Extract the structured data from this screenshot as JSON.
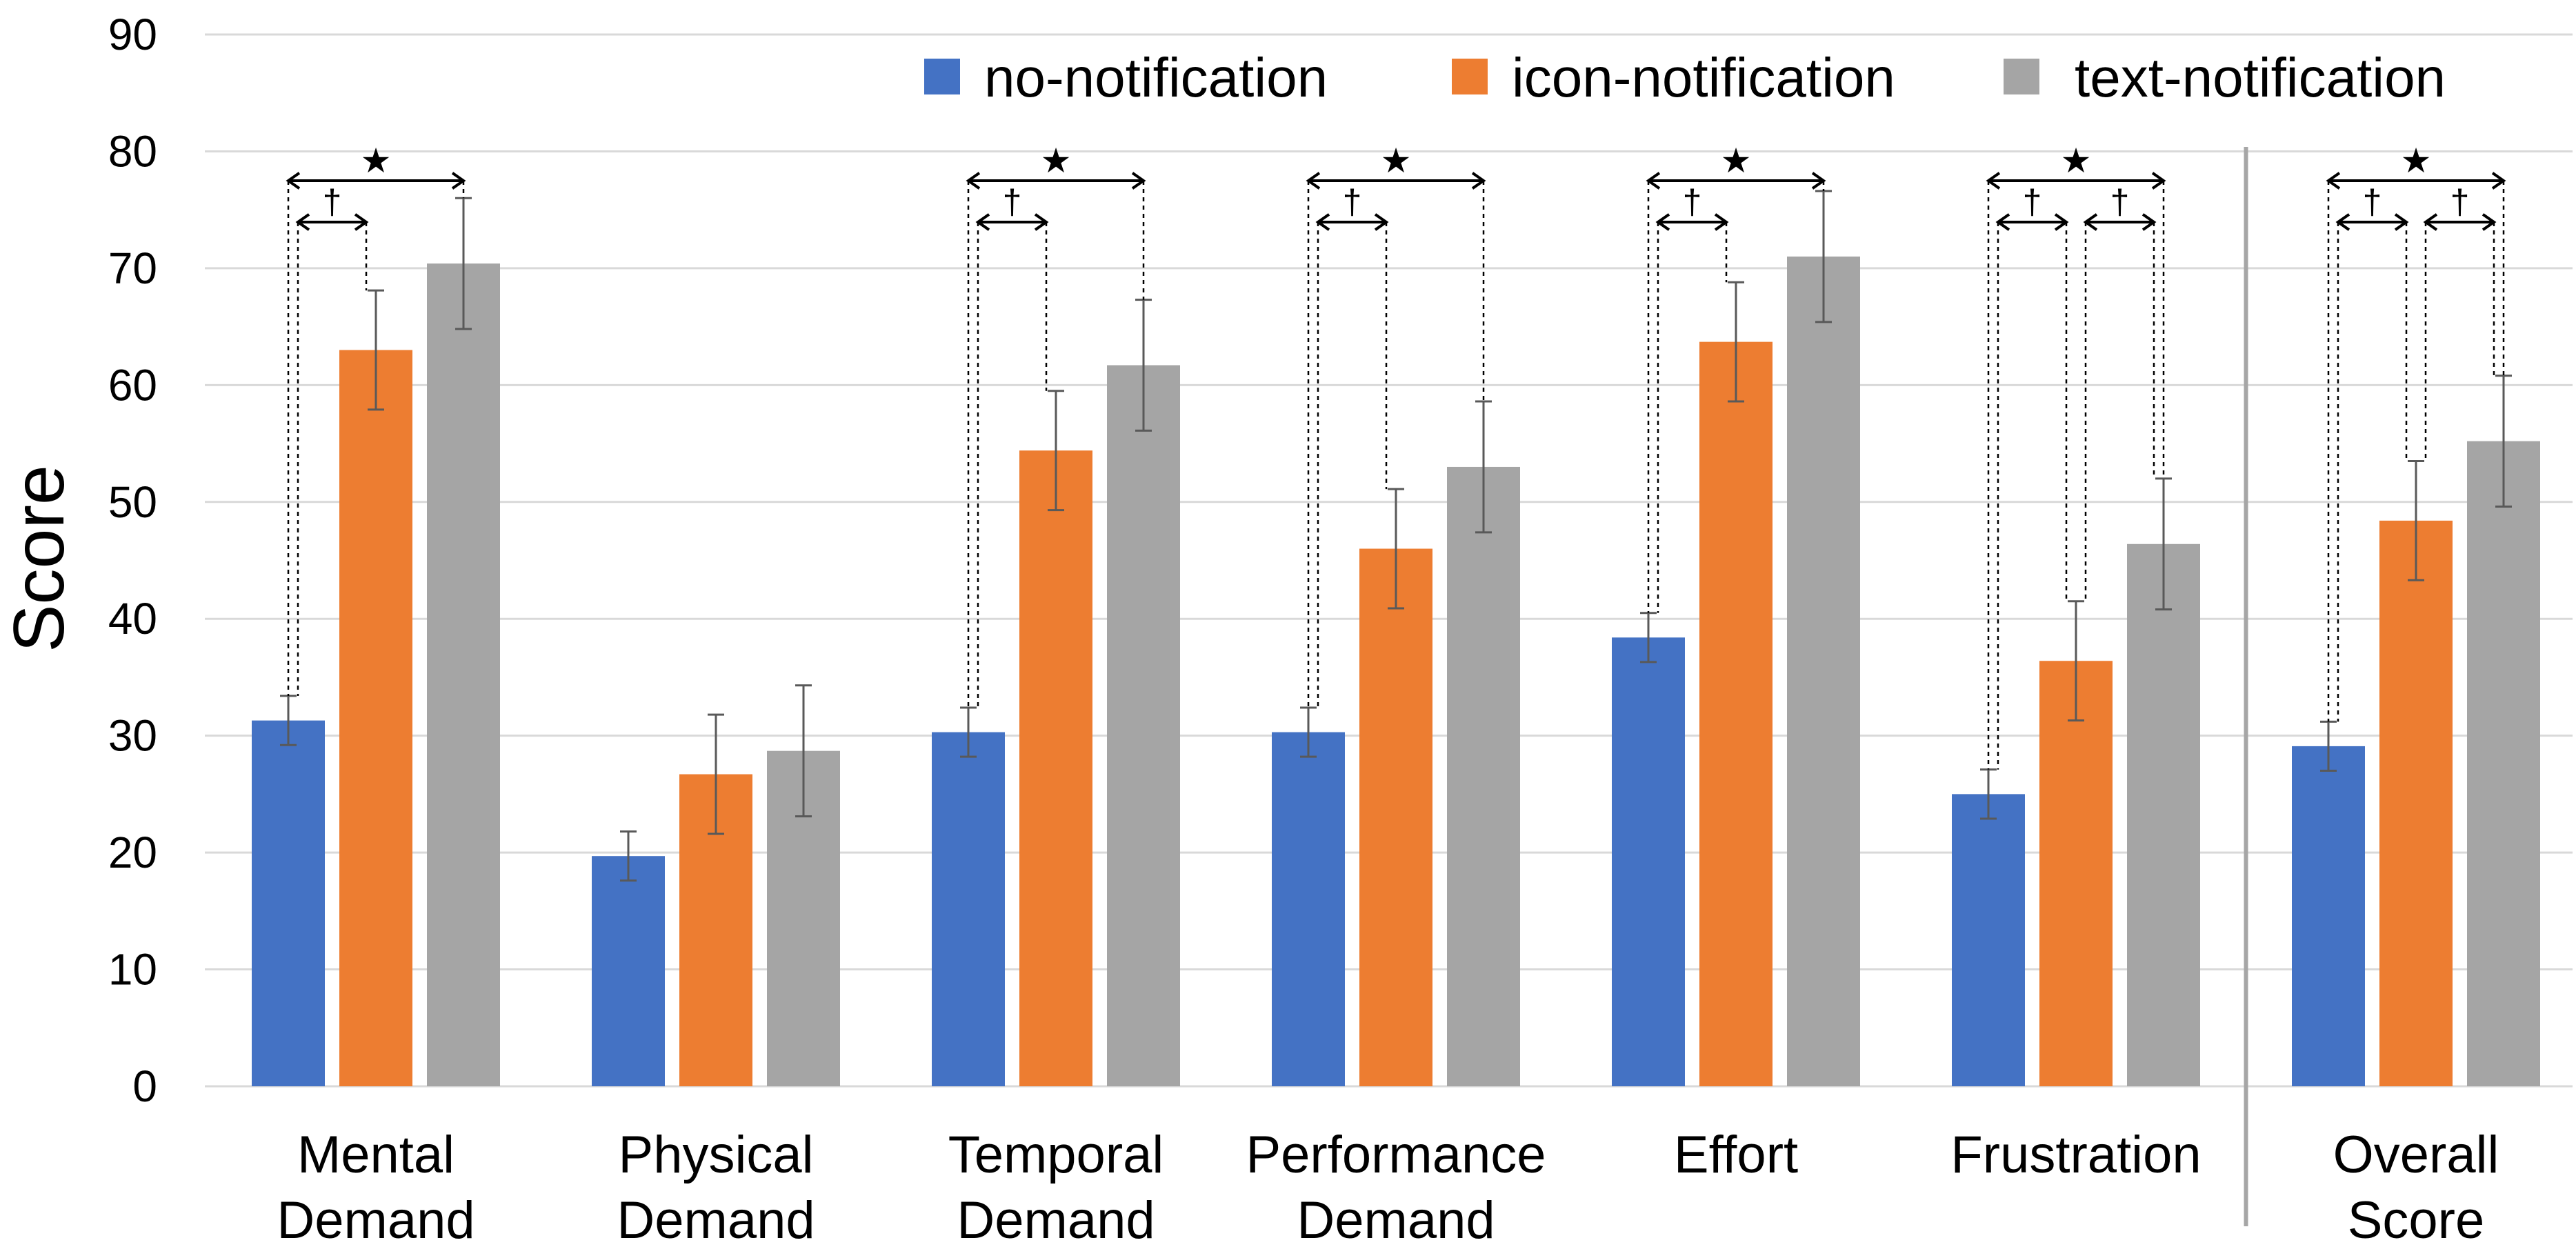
{
  "chart_data": {
    "type": "bar",
    "title": "",
    "xlabel": "",
    "ylabel": "Score",
    "ylim": [
      0,
      90
    ],
    "yticks": [
      0,
      10,
      20,
      30,
      40,
      50,
      60,
      70,
      80,
      90
    ],
    "grid": true,
    "legend_position": "top-right",
    "categories": [
      [
        "Mental",
        "Demand"
      ],
      [
        "Physical",
        "Demand"
      ],
      [
        "Temporal",
        "Demand"
      ],
      [
        "Performance",
        "Demand"
      ],
      [
        "Effort"
      ],
      [
        "Frustration"
      ],
      [
        "Overall",
        "Score"
      ]
    ],
    "series": [
      {
        "name": "no-notification",
        "color": "#4472c4",
        "values": [
          31.3,
          19.7,
          30.3,
          30.3,
          38.4,
          25.0,
          29.1
        ],
        "errors": [
          2.1,
          2.1,
          2.1,
          2.1,
          2.1,
          2.1,
          2.1
        ]
      },
      {
        "name": "icon-notification",
        "color": "#ed7d31",
        "values": [
          63.0,
          26.7,
          54.4,
          46.0,
          63.7,
          36.4,
          48.4
        ],
        "errors": [
          5.1,
          5.1,
          5.1,
          5.1,
          5.1,
          5.1,
          5.1
        ]
      },
      {
        "name": "text-notification",
        "color": "#a5a5a5",
        "values": [
          70.4,
          28.7,
          61.7,
          53.0,
          71.0,
          46.4,
          55.2
        ],
        "errors": [
          5.6,
          5.6,
          5.6,
          5.6,
          5.6,
          5.6,
          5.6
        ]
      }
    ],
    "significance": [
      {
        "category": 0,
        "from": 0,
        "to": 2,
        "symbol": "★",
        "level": 1
      },
      {
        "category": 0,
        "from": 0,
        "to": 1,
        "symbol": "†",
        "level": 0
      },
      {
        "category": 2,
        "from": 0,
        "to": 2,
        "symbol": "★",
        "level": 1
      },
      {
        "category": 2,
        "from": 0,
        "to": 1,
        "symbol": "†",
        "level": 0
      },
      {
        "category": 3,
        "from": 0,
        "to": 2,
        "symbol": "★",
        "level": 1
      },
      {
        "category": 3,
        "from": 0,
        "to": 1,
        "symbol": "†",
        "level": 0
      },
      {
        "category": 4,
        "from": 0,
        "to": 2,
        "symbol": "★",
        "level": 1
      },
      {
        "category": 4,
        "from": 0,
        "to": 1,
        "symbol": "†",
        "level": 0
      },
      {
        "category": 5,
        "from": 0,
        "to": 2,
        "symbol": "★",
        "level": 1
      },
      {
        "category": 5,
        "from": 0,
        "to": 1,
        "symbol": "†",
        "level": 0
      },
      {
        "category": 5,
        "from": 1,
        "to": 2,
        "symbol": "†",
        "level": 0
      },
      {
        "category": 6,
        "from": 0,
        "to": 2,
        "symbol": "★",
        "level": 1
      },
      {
        "category": 6,
        "from": 0,
        "to": 1,
        "symbol": "†",
        "level": 0
      },
      {
        "category": 6,
        "from": 1,
        "to": 2,
        "symbol": "†",
        "level": 0
      }
    ],
    "separator_before_category": 6
  }
}
